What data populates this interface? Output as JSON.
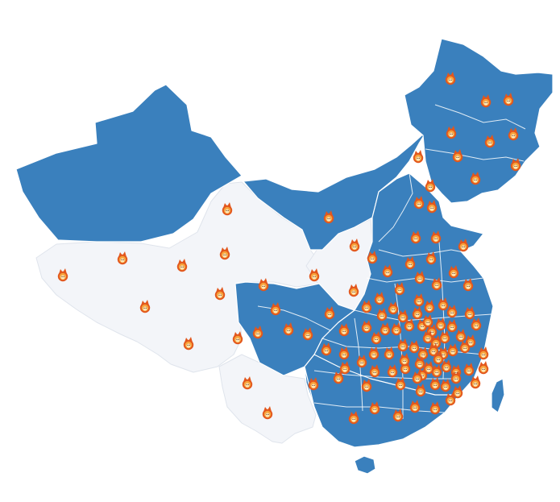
{
  "map": {
    "colors": {
      "active_region": "#3a80bd",
      "inactive_region": "#f3f5f9",
      "border": "#ffffff",
      "marker_outer": "#e2571d",
      "marker_inner": "#f7a23b",
      "marker_face": "#ffe7b8"
    },
    "legend": [],
    "markers": {
      "icon": "flame-mascot-icon",
      "count": 118
    },
    "regions": {
      "active": [
        "northwest-region",
        "north-region",
        "northeast-region",
        "central-east-region",
        "south-region",
        "sichuan-basin-region",
        "hainan-island",
        "taiwan-island"
      ],
      "inactive": [
        "tibet-qinghai-plateau-region",
        "yunnan-region",
        "central-corridor-region"
      ]
    }
  }
}
